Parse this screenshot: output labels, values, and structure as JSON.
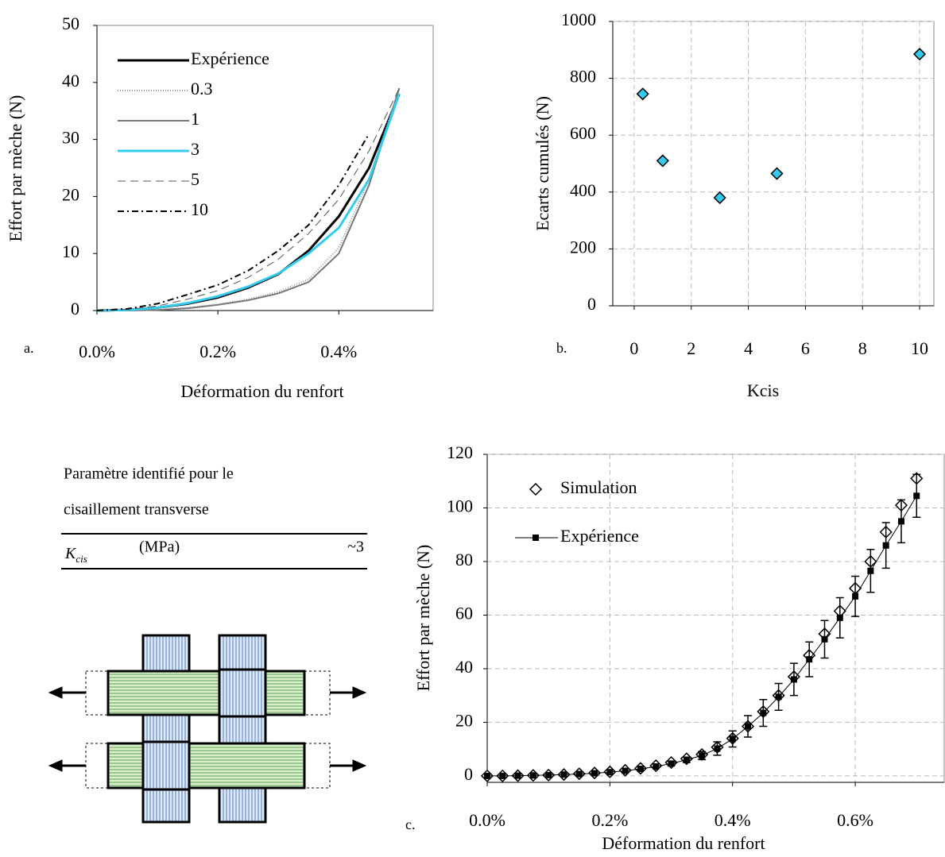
{
  "chart_data": [
    {
      "type": "line",
      "panel_label": "a.",
      "x_label": "Déformation du renfort",
      "y_label": "Effort par mèche (N)",
      "x": [
        0,
        0.05,
        0.1,
        0.15,
        0.2,
        0.25,
        0.3,
        0.35,
        0.4,
        0.45,
        0.5
      ],
      "xlim": [
        0,
        0.556
      ],
      "xticks": [
        {
          "value": 0,
          "label": "0.0%"
        },
        {
          "value": 0.2,
          "label": "0.2%"
        },
        {
          "value": 0.4,
          "label": "0.4%"
        }
      ],
      "ylim": [
        0,
        50
      ],
      "yticks": [
        0,
        10,
        20,
        30,
        40,
        50
      ],
      "grid": false,
      "legend": "upper left",
      "series": [
        {
          "name": "Expérience",
          "color": "#000000",
          "line_style": "solid",
          "line_width": 3,
          "values": [
            0,
            0.1,
            0.5,
            1.2,
            2.3,
            4,
            6.4,
            10.5,
            16.5,
            25,
            38
          ]
        },
        {
          "name": "0.3",
          "color": "#999999",
          "line_style": "dotted",
          "line_width": 2,
          "values": [
            0,
            0,
            0.1,
            0.5,
            1.1,
            2,
            3.3,
            5.5,
            11,
            23,
            39
          ]
        },
        {
          "name": "1",
          "color": "#777777",
          "line_style": "solid",
          "line_width": 2,
          "values": [
            0,
            0,
            0.1,
            0.4,
            1,
            1.8,
            3,
            5,
            10,
            22,
            39
          ]
        },
        {
          "name": "3",
          "color": "#33ccee",
          "line_style": "solid",
          "line_width": 3,
          "values": [
            0,
            0.1,
            0.5,
            1.3,
            2.5,
            4.2,
            6.5,
            10,
            14.5,
            23,
            38
          ]
        },
        {
          "name": "5",
          "color": "#555555",
          "line_style": "dashed",
          "line_width": 1,
          "values": [
            0,
            0.2,
            0.8,
            2,
            3.5,
            5.8,
            9,
            13.5,
            19.5,
            28,
            39
          ]
        },
        {
          "name": "10",
          "color": "#000000",
          "line_style": "dashdot",
          "line_width": 2,
          "values": [
            0,
            0.3,
            1.2,
            2.8,
            4.5,
            7,
            10.5,
            15,
            22,
            31,
            null
          ]
        }
      ]
    },
    {
      "type": "scatter",
      "panel_label": "b.",
      "x_label": "Kcis",
      "y_label": "Ecarts cumulés (N)",
      "x": [
        0.3,
        1,
        3,
        5,
        10
      ],
      "values": [
        745,
        510,
        380,
        465,
        885
      ],
      "color": "#33ccee",
      "marker": "diamond",
      "xlim": [
        -0.75,
        10.5
      ],
      "xticks": [
        0,
        2,
        4,
        6,
        8,
        10
      ],
      "ylim": [
        0,
        1000
      ],
      "yticks": [
        0,
        200,
        400,
        600,
        800,
        1000
      ],
      "grid": true
    },
    {
      "type": "line",
      "panel_label": "c.",
      "x_label": "Déformation du renfort",
      "y_label": "Effort par mèche (N)",
      "x": [
        0,
        0.025,
        0.05,
        0.075,
        0.1,
        0.125,
        0.15,
        0.175,
        0.2,
        0.225,
        0.25,
        0.275,
        0.3,
        0.325,
        0.35,
        0.375,
        0.4,
        0.425,
        0.45,
        0.475,
        0.5,
        0.525,
        0.55,
        0.575,
        0.6,
        0.625,
        0.65,
        0.675,
        0.7
      ],
      "xlim": [
        0,
        0.745
      ],
      "xticks": [
        {
          "value": 0,
          "label": "0.0%"
        },
        {
          "value": 0.2,
          "label": "0.2%"
        },
        {
          "value": 0.4,
          "label": "0.4%"
        },
        {
          "value": 0.6,
          "label": "0.6%"
        }
      ],
      "ylim": [
        -2.4,
        120
      ],
      "yticks": [
        0,
        20,
        40,
        60,
        80,
        100,
        120
      ],
      "grid": true,
      "legend": "upper left",
      "series": [
        {
          "name": "Simulation",
          "color": "#000000",
          "marker": "diamond-open",
          "line_style": "none",
          "line_width": 0,
          "values": [
            0,
            0,
            0.1,
            0.2,
            0.3,
            0.5,
            0.8,
            1.1,
            1.5,
            2.1,
            2.8,
            3.8,
            5,
            6.4,
            8,
            10.7,
            14,
            18.5,
            24,
            30,
            37,
            45,
            53,
            61.5,
            70,
            80,
            91,
            101,
            111
          ]
        },
        {
          "name": "Expérience",
          "color": "#000000",
          "marker": "square",
          "line_style": "solid",
          "line_width": 1,
          "values": [
            0,
            0,
            0.1,
            0.2,
            0.3,
            0.5,
            0.7,
            1,
            1.4,
            1.9,
            2.6,
            3.5,
            4.6,
            6,
            7.6,
            10.2,
            13.8,
            18.5,
            23.5,
            29.5,
            36,
            43.5,
            51,
            59,
            67,
            76.5,
            86,
            95,
            104.5
          ],
          "errors": [
            0,
            0,
            0,
            0,
            0,
            0,
            0,
            0,
            0,
            0,
            0,
            0,
            0.8,
            1,
            1.5,
            2.5,
            3,
            4,
            5,
            5,
            6,
            6.5,
            7,
            7.5,
            7.5,
            8,
            8.5,
            8,
            8
          ]
        }
      ]
    }
  ],
  "table": {
    "header": [
      "Paramètre identifié pour le",
      "cisaillement transverse"
    ],
    "rows": [
      [
        {
          "symbol": "K",
          "subscript": "cis"
        },
        "(MPa)",
        "~3"
      ]
    ]
  }
}
